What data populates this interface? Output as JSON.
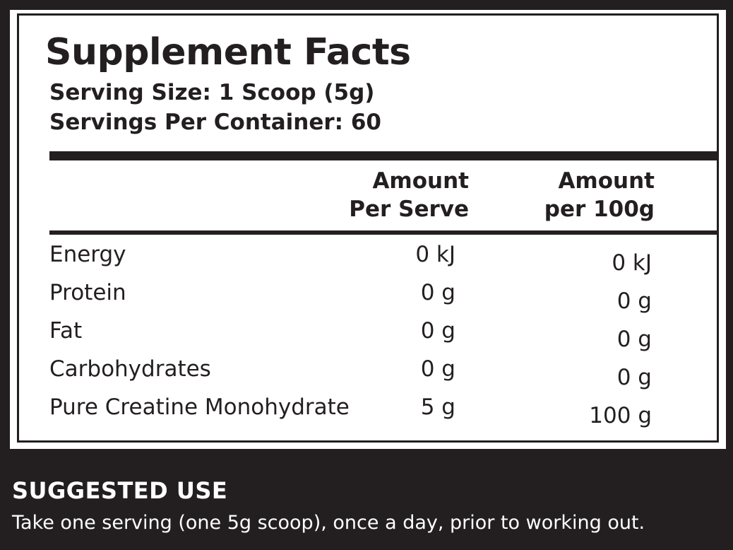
{
  "label": {
    "title": "Supplement Facts",
    "serving_size": "Serving Size: 1 Scoop (5g)",
    "servings_per_container": "Servings Per Container: 60",
    "col1_line1": "Amount",
    "col1_line2": "Per Serve",
    "col2_line1": "Amount",
    "col2_line2": "per 100g",
    "rows": [
      {
        "name": "Energy",
        "per_serve": "0 kJ",
        "per_100g": "0 kJ"
      },
      {
        "name": "Protein",
        "per_serve": "0 g",
        "per_100g": "0 g"
      },
      {
        "name": "Fat",
        "per_serve": "0 g",
        "per_100g": "0 g"
      },
      {
        "name": "Carbohydrates",
        "per_serve": "0 g",
        "per_100g": "0 g"
      },
      {
        "name": "Pure Creatine Monohydrate",
        "per_serve": "5 g",
        "per_100g": "100 g"
      }
    ]
  },
  "suggested_use": {
    "heading": "SUGGESTED USE",
    "text": "Take one serving (one 5g scoop), once a day, prior to working out."
  },
  "colors": {
    "background": "#231f20",
    "panel": "#ffffff",
    "text_dark": "#231f20",
    "text_light": "#ffffff"
  }
}
